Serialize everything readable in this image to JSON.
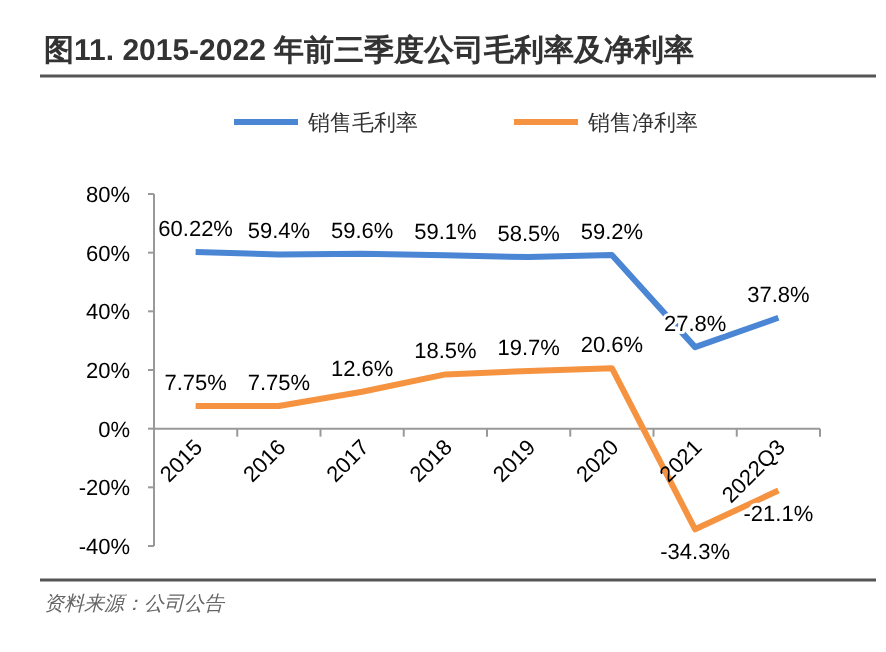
{
  "chart_data": {
    "type": "line",
    "title": "图11. 2015-2022 年前三季度公司毛利率及净利率",
    "categories": [
      "2015",
      "2016",
      "2017",
      "2018",
      "2019",
      "2020",
      "2021",
      "2022Q3"
    ],
    "series": [
      {
        "name": "销售毛利率",
        "color": "#4a86d4",
        "values": [
          60.22,
          59.4,
          59.6,
          59.1,
          58.5,
          59.2,
          27.8,
          37.8
        ],
        "value_labels": [
          "60.22%",
          "59.4%",
          "59.6%",
          "59.1%",
          "58.5%",
          "59.2%",
          "27.8%",
          "37.8%"
        ]
      },
      {
        "name": "销售净利率",
        "color": "#f59340",
        "values": [
          7.75,
          7.75,
          12.6,
          18.5,
          19.7,
          20.6,
          -34.3,
          -21.1
        ],
        "value_labels": [
          "7.75%",
          "7.75%",
          "12.6%",
          "18.5%",
          "19.7%",
          "20.6%",
          "-34.3%",
          "-21.1%"
        ]
      }
    ],
    "ylim": [
      -40,
      80
    ],
    "yticks": [
      {
        "value": -40,
        "label": "-40%"
      },
      {
        "value": -20,
        "label": "-20%"
      },
      {
        "value": 0,
        "label": "0%"
      },
      {
        "value": 20,
        "label": "20%"
      },
      {
        "value": 40,
        "label": "40%"
      },
      {
        "value": 60,
        "label": "60%"
      },
      {
        "value": 80,
        "label": "80%"
      }
    ],
    "legend": "top",
    "grid": false,
    "marker": "none",
    "line_style": "solid",
    "annotations": [
      "资料来源：公司公告"
    ]
  }
}
